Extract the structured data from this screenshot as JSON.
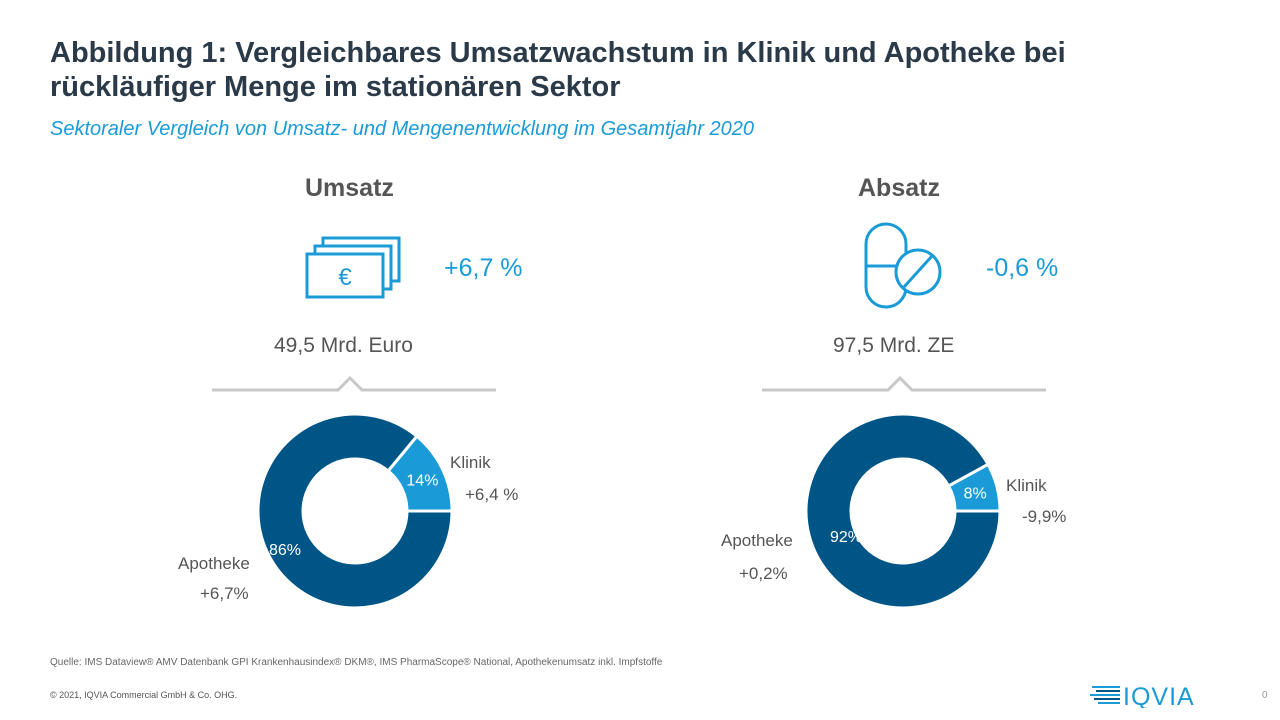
{
  "title": "Abbildung 1: Vergleichbares Umsatzwachstum in Klinik und Apotheke bei rückläufiger Menge im stationären Sektor",
  "subtitle": "Sektoraler Vergleich von Umsatz- und Mengenentwicklung im Gesamtjahr 2020",
  "panels": [
    {
      "heading": "Umsatz",
      "icon": "euro-banknotes-icon",
      "change": "+6,7 %",
      "total": "49,5 Mrd. Euro"
    },
    {
      "heading": "Absatz",
      "icon": "pills-icon",
      "change": "-0,6 %",
      "total": "97,5 Mrd. ZE"
    }
  ],
  "chart_data": [
    {
      "type": "pie",
      "donut": true,
      "title": "Umsatz",
      "slices": [
        {
          "name": "Klinik",
          "value": 14,
          "label": "14%",
          "change": "+6,4 %",
          "color": "#1a9bd7"
        },
        {
          "name": "Apotheke",
          "value": 86,
          "label": "86%",
          "change": "+6,7%",
          "color": "#005587"
        }
      ]
    },
    {
      "type": "pie",
      "donut": true,
      "title": "Absatz",
      "slices": [
        {
          "name": "Klinik",
          "value": 8,
          "label": "8%",
          "change": "-9,9%",
          "color": "#1a9bd7"
        },
        {
          "name": "Apotheke",
          "value": 92,
          "label": "92%",
          "change": "+0,2%",
          "color": "#005587"
        }
      ]
    }
  ],
  "footer": {
    "source": "Quelle: IMS Dataview® AMV Datenbank GPI Krankenhausindex® DKM®, IMS PharmaScope® National, Apothekenumsatz inkl. Impfstoffe",
    "copyright": "© 2021, IQVIA Commercial GmbH & Co. OHG.",
    "logo": "IQVIA",
    "page": "0"
  }
}
